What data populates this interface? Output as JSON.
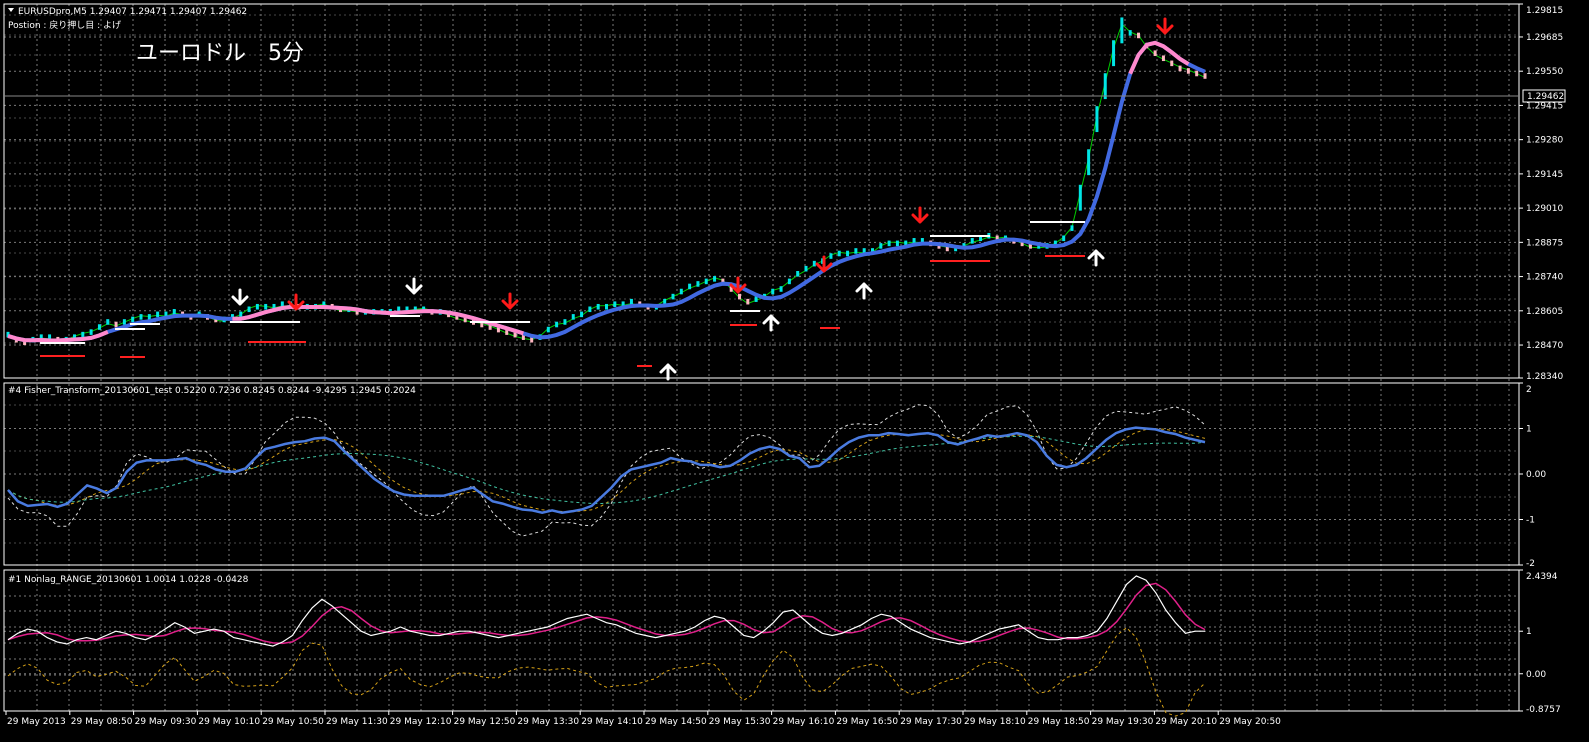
{
  "header": {
    "symbol_line": "EURUSDpro,M5  1.29407 1.29471 1.29407 1.29462",
    "position_line": "Postion : 戻り押し目 : よげ",
    "overlay_title": "ユーロドル　5分"
  },
  "current_price_label": "1.29462",
  "x_labels": [
    "29 May 2013",
    "29 May 08:50",
    "29 May 09:30",
    "29 May 10:10",
    "29 May 10:50",
    "29 May 11:30",
    "29 May 12:10",
    "29 May 12:50",
    "29 May 13:30",
    "29 May 14:10",
    "29 May 14:50",
    "29 May 15:30",
    "29 May 16:10",
    "29 May 16:50",
    "29 May 17:30",
    "29 May 18:10",
    "29 May 18:50",
    "29 May 19:30",
    "29 May 20:10",
    "29 May 20:50"
  ],
  "colors": {
    "background": "#000000",
    "grid": "#7a7a7a",
    "bull_bar": "#00e5e5",
    "bear_bar": "#ffb6c1",
    "ma_blue": "#4169e1",
    "ma_pink": "#ff88cc",
    "envelope_green": "#00cc00",
    "sell_arrow": "#ff1a1a",
    "buy_arrow": "#ffffff",
    "support_red": "#ff2020",
    "fisher_line": "#4a7be0",
    "nonlag_white": "#ffffff",
    "nonlag_magenta": "#e0208a",
    "nonlag_gold": "#d4a017"
  },
  "chart_data": [
    {
      "type": "line",
      "panel": "price",
      "y_ticks": [
        "1.29815",
        "1.29685",
        "1.29550",
        "1.29415",
        "1.29280",
        "1.29145",
        "1.29010",
        "1.28875",
        "1.28740",
        "1.28605",
        "1.28470",
        "1.28340"
      ],
      "ylim": [
        1.2834,
        1.29815
      ],
      "x_index_range": [
        0,
        142
      ],
      "series": [
        {
          "name": "",
          "values": [
            1.2851,
            1.2849,
            1.2848,
            1.2849,
            1.285,
            1.285,
            1.2849,
            1.2849,
            1.285,
            1.2851,
            1.2852,
            1.2854,
            1.2856,
            1.2855,
            1.2856,
            1.2857,
            1.2858,
            1.2858,
            1.2859,
            1.2859,
            1.286,
            1.2859,
            1.2858,
            1.2859,
            1.2858,
            1.2857,
            1.2857,
            1.2858,
            1.2859,
            1.2861,
            1.2862,
            1.2862,
            1.2862,
            1.2863,
            1.2863,
            1.2862,
            1.2862,
            1.2862,
            1.2863,
            1.2862,
            1.2861,
            1.2861,
            1.286,
            1.286,
            1.286,
            1.286,
            1.286,
            1.2861,
            1.2861,
            1.2861,
            1.2861,
            1.286,
            1.286,
            1.2859,
            1.2858,
            1.2857,
            1.2856,
            1.2855,
            1.2854,
            1.2853,
            1.2852,
            1.2851,
            1.285,
            1.2849,
            1.285,
            1.2853,
            1.2855,
            1.2856,
            1.2858,
            1.2859,
            1.2861,
            1.2862,
            1.2862,
            1.2863,
            1.2863,
            1.2864,
            1.2863,
            1.2862,
            1.2862,
            1.2864,
            1.2866,
            1.2868,
            1.287,
            1.2871,
            1.2872,
            1.2873,
            1.2872,
            1.2869,
            1.2866,
            1.2864,
            1.2865,
            1.2866,
            1.2868,
            1.2869,
            1.2872,
            1.2875,
            1.2877,
            1.2879,
            1.288,
            1.2882,
            1.2883,
            1.2883,
            1.2884,
            1.2884,
            1.2884,
            1.2886,
            1.2887,
            1.2887,
            1.2887,
            1.2888,
            1.2888,
            1.2887,
            1.2886,
            1.2885,
            1.2885,
            1.2886,
            1.2888,
            1.2889,
            1.289,
            1.2889,
            1.2889,
            1.2888,
            1.2887,
            1.2886,
            1.2886,
            1.2886,
            1.2887,
            1.2889,
            1.2893,
            1.2901,
            1.2915,
            1.2932,
            1.2945,
            1.2958,
            1.2967,
            1.297,
            1.2969,
            1.2965,
            1.2962,
            1.296,
            1.2958,
            1.2956,
            1.2955,
            1.2954,
            1.2953
          ]
        }
      ]
    },
    {
      "type": "line",
      "panel": "fisher",
      "title": "#4 Fisher_Transform_20130601_test 0.5220 0.7236 0.8245 0.8244 -9.4295 1.2945 0.2024",
      "y_ticks": [
        "2",
        "1",
        "0.00",
        "-1",
        "-2"
      ],
      "ylim": [
        -2,
        2
      ],
      "x_index_range": [
        0,
        142
      ],
      "series": [
        {
          "name": "",
          "values": [
            -0.35,
            -0.6,
            -0.7,
            -0.68,
            -0.66,
            -0.72,
            -0.65,
            -0.45,
            -0.25,
            -0.32,
            -0.42,
            -0.3,
            0.05,
            0.25,
            0.3,
            0.3,
            0.3,
            0.32,
            0.35,
            0.25,
            0.2,
            0.1,
            0.05,
            0.05,
            0.12,
            0.35,
            0.55,
            0.6,
            0.66,
            0.7,
            0.72,
            0.78,
            0.8,
            0.72,
            0.5,
            0.3,
            0.1,
            -0.1,
            -0.25,
            -0.38,
            -0.45,
            -0.48,
            -0.48,
            -0.48,
            -0.48,
            -0.42,
            -0.35,
            -0.3,
            -0.45,
            -0.6,
            -0.65,
            -0.72,
            -0.78,
            -0.8,
            -0.85,
            -0.8,
            -0.85,
            -0.82,
            -0.78,
            -0.7,
            -0.5,
            -0.3,
            -0.05,
            0.1,
            0.15,
            0.2,
            0.25,
            0.35,
            0.3,
            0.28,
            0.2,
            0.2,
            0.15,
            0.18,
            0.3,
            0.45,
            0.55,
            0.6,
            0.55,
            0.4,
            0.35,
            0.15,
            0.18,
            0.35,
            0.55,
            0.7,
            0.8,
            0.85,
            0.85,
            0.9,
            0.88,
            0.85,
            0.88,
            0.9,
            0.85,
            0.7,
            0.65,
            0.72,
            0.78,
            0.85,
            0.82,
            0.85,
            0.9,
            0.85,
            0.7,
            0.4,
            0.2,
            0.15,
            0.2,
            0.35,
            0.55,
            0.75,
            0.9,
            0.98,
            1.02,
            1.0,
            0.98,
            0.92,
            0.88,
            0.8,
            0.75,
            0.7
          ]
        }
      ]
    },
    {
      "type": "line",
      "panel": "nonlag",
      "title": "#1 Nonlag_RANGE_20130601 1.0014 1.0228 -0.0428",
      "y_ticks": [
        "2.4394",
        "1",
        "0.00",
        "-0.8757"
      ],
      "ylim": [
        -0.8757,
        2.4394
      ],
      "x_index_range": [
        0,
        142
      ],
      "series": [
        {
          "name": "",
          "values": [
            0.8,
            0.95,
            1.05,
            1.0,
            0.85,
            0.75,
            0.7,
            0.8,
            0.85,
            0.8,
            0.9,
            1.0,
            0.95,
            0.85,
            0.8,
            0.9,
            1.05,
            1.2,
            1.1,
            0.95,
            1.0,
            1.05,
            1.0,
            0.85,
            0.8,
            0.75,
            0.7,
            0.65,
            0.75,
            0.9,
            1.25,
            1.55,
            1.75,
            1.6,
            1.4,
            1.2,
            1.0,
            0.9,
            0.95,
            1.0,
            1.1,
            1.0,
            0.95,
            0.9,
            0.9,
            0.95,
            1.0,
            1.0,
            0.95,
            0.9,
            0.85,
            0.9,
            0.95,
            1.0,
            1.05,
            1.1,
            1.2,
            1.3,
            1.35,
            1.4,
            1.3,
            1.2,
            1.15,
            1.05,
            0.95,
            0.9,
            0.85,
            0.9,
            0.95,
            1.0,
            1.1,
            1.25,
            1.35,
            1.3,
            1.1,
            0.9,
            0.85,
            1.0,
            1.2,
            1.45,
            1.5,
            1.3,
            1.1,
            0.95,
            0.9,
            0.95,
            1.05,
            1.15,
            1.3,
            1.4,
            1.35,
            1.2,
            1.05,
            0.95,
            0.85,
            0.8,
            0.75,
            0.7,
            0.75,
            0.85,
            0.95,
            1.05,
            1.1,
            1.15,
            1.0,
            0.85,
            0.8,
            0.8,
            0.85,
            0.85,
            0.9,
            1.0,
            1.3,
            1.7,
            2.1,
            2.3,
            2.2,
            1.9,
            1.5,
            1.2,
            0.95,
            1.0,
            1.0
          ]
        }
      ]
    }
  ]
}
